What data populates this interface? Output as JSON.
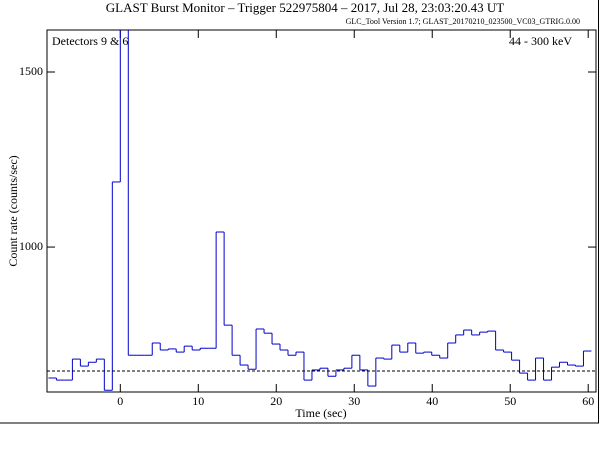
{
  "chart_data": {
    "type": "histogram",
    "title": "GLAST Burst Monitor  –  Trigger 522975804  –  2017, Jul 28, 23:03:20.43 UT",
    "subtitle": "GLC_Tool Version 1.7; GLAST_20170210_023500_VC03_GTRIG.0.00",
    "annotations": [
      "Detectors 9 & 6",
      "44 - 300 keV"
    ],
    "x_label": "Time (sec)",
    "y_label": "Count rate (counts/sec)",
    "color": "#0000cc",
    "bins": [
      -9.216,
      -8.192,
      -7.168,
      -6.144,
      -5.12,
      -4.096,
      -3.072,
      -2.048,
      -1.024,
      0,
      1.024,
      2.048,
      3.072,
      4.096,
      5.12,
      6.144,
      7.168,
      8.192,
      9.216,
      10.24,
      11.264,
      12.288,
      13.312,
      14.336,
      15.36,
      16.384,
      17.408,
      18.432,
      19.456,
      20.48,
      21.504,
      22.528,
      23.552,
      24.576,
      25.6,
      26.624,
      27.648,
      28.672,
      29.696,
      30.72,
      31.744,
      32.768,
      33.792,
      34.816,
      35.84,
      36.864,
      37.888,
      38.912,
      39.936,
      40.96,
      41.984,
      43.008,
      44.032,
      45.056,
      46.08,
      47.104,
      48.128,
      49.152,
      50.176,
      51.2,
      52.224,
      53.248,
      54.272,
      55.296,
      56.32,
      57.344,
      58.368,
      59.392,
      60.416
    ],
    "values": [
      626,
      620,
      620,
      680,
      660,
      671,
      680,
      591,
      1186,
      1650,
      691,
      691,
      691,
      726,
      706,
      709,
      700,
      717,
      706,
      711,
      711,
      1043,
      777,
      691,
      663,
      651,
      766,
      754,
      723,
      706,
      691,
      700,
      620,
      649,
      654,
      631,
      649,
      654,
      691,
      649,
      603,
      683,
      680,
      720,
      700,
      726,
      697,
      700,
      691,
      683,
      726,
      749,
      763,
      749,
      757,
      760,
      706,
      700,
      677,
      640,
      620,
      683,
      620,
      657,
      671,
      663,
      660,
      703
    ],
    "background": 646,
    "xlim": [
      -9.4,
      61
    ],
    "ylim": [
      586,
      1620
    ],
    "xticks": [
      0,
      10,
      20,
      30,
      40,
      50,
      60
    ],
    "yticks": [
      1000,
      1500
    ]
  }
}
